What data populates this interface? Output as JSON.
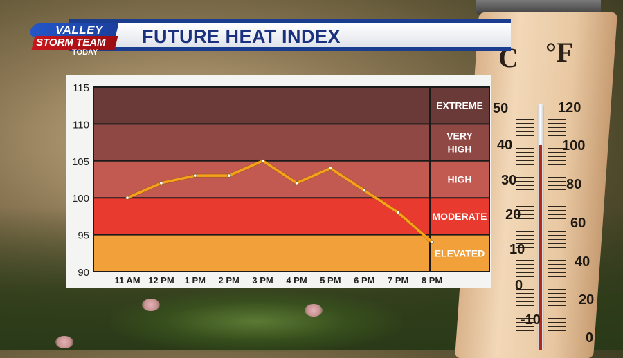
{
  "header": {
    "title": "FUTURE HEAT INDEX",
    "logo_line1": "VALLEY",
    "logo_line2": "STORM TEAM",
    "logo_line3": "TODAY"
  },
  "thermometer": {
    "unit_c": "C",
    "unit_f": "°F",
    "celsius_labels": [
      "50",
      "40",
      "30",
      "20",
      "10",
      "0",
      "-10"
    ],
    "fahrenheit_labels": [
      "120",
      "100",
      "80",
      "60",
      "40",
      "20",
      "0"
    ]
  },
  "chart_data": {
    "type": "line",
    "title": "FUTURE HEAT INDEX",
    "categories": [
      "11 AM",
      "12 PM",
      "1 PM",
      "2 PM",
      "3 PM",
      "4 PM",
      "5 PM",
      "6 PM",
      "7 PM",
      "8 PM"
    ],
    "values": [
      100,
      102,
      103,
      103,
      105,
      102,
      104,
      101,
      98,
      94
    ],
    "ylim": [
      90,
      115
    ],
    "yticks": [
      "115",
      "110",
      "105",
      "100",
      "95",
      "90"
    ],
    "grid": true,
    "bands": [
      {
        "label": "EXTREME",
        "from": 110,
        "to": 115,
        "color": "#6a3a38"
      },
      {
        "label": "VERY HIGH",
        "from": 105,
        "to": 110,
        "color": "#904844"
      },
      {
        "label": "HIGH",
        "from": 100,
        "to": 105,
        "color": "#c25a52"
      },
      {
        "label": "MODERATE",
        "from": 95,
        "to": 100,
        "color": "#e83a2e"
      },
      {
        "label": "ELEVATED",
        "from": 90,
        "to": 95,
        "color": "#f2a03a"
      }
    ],
    "line_color": "#f6a21a"
  }
}
